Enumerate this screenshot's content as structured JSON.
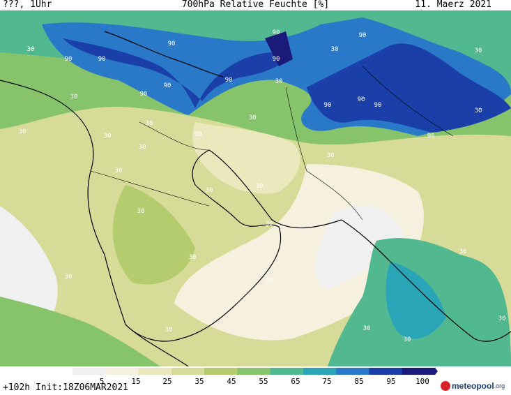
{
  "header": {
    "left": "???, 1Uhr",
    "title": "700hPa Relative Feuchte [%]",
    "date": "11. Maerz 2021"
  },
  "colorbar": {
    "ticks": [
      "5",
      "15",
      "25",
      "35",
      "45",
      "55",
      "65",
      "75",
      "85",
      "95",
      "100"
    ],
    "colors": [
      "#f0f0f0",
      "#f6f1de",
      "#ece8be",
      "#d6dc98",
      "#b4cc6e",
      "#86c36a",
      "#52b890",
      "#2aa5b8",
      "#2a78c8",
      "#1b3fa8",
      "#1a1a7a"
    ]
  },
  "contour_labels": [
    "90",
    "30"
  ],
  "footer": {
    "run": "+102h Init:18Z06MAR2021"
  },
  "logo": {
    "name": "meteopool",
    "tld": ".org"
  }
}
